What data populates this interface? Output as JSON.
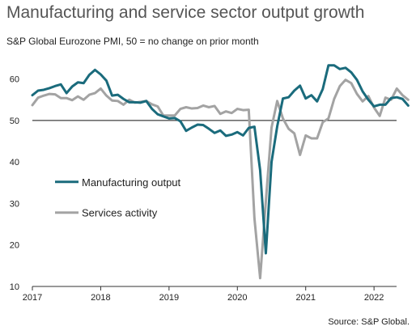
{
  "title": "Manufacturing and service sector output growth",
  "subtitle": "S&P Global Eurozone PMI, 50 = no change on prior month",
  "source": "Source: S&P Global.",
  "chart_data": {
    "type": "line",
    "xlim": [
      2017,
      2022.33
    ],
    "ylim": [
      10,
      65
    ],
    "y_ticks": [
      10,
      20,
      30,
      40,
      50,
      60
    ],
    "x_ticks": [
      "2017",
      "2018",
      "2019",
      "2020",
      "2021",
      "2022"
    ],
    "reference_line": 50,
    "grid": false,
    "legend_position": "lower-left",
    "colors": {
      "manufacturing": "#1a6b7c",
      "services": "#a3a3a3"
    },
    "series": [
      {
        "name": "Manufacturing output",
        "key": "manufacturing",
        "values": [
          [
            "2017-01",
            56.1
          ],
          [
            "2017-02",
            57.2
          ],
          [
            "2017-03",
            57.4
          ],
          [
            "2017-04",
            57.8
          ],
          [
            "2017-05",
            58.3
          ],
          [
            "2017-06",
            58.7
          ],
          [
            "2017-07",
            56.6
          ],
          [
            "2017-08",
            58.2
          ],
          [
            "2017-09",
            59.2
          ],
          [
            "2017-10",
            59.0
          ],
          [
            "2017-11",
            61.0
          ],
          [
            "2017-12",
            62.2
          ],
          [
            "2018-01",
            61.1
          ],
          [
            "2018-02",
            59.6
          ],
          [
            "2018-03",
            56.0
          ],
          [
            "2018-04",
            56.2
          ],
          [
            "2018-05",
            55.2
          ],
          [
            "2018-06",
            54.4
          ],
          [
            "2018-07",
            54.4
          ],
          [
            "2018-08",
            54.3
          ],
          [
            "2018-09",
            54.7
          ],
          [
            "2018-10",
            52.8
          ],
          [
            "2018-11",
            51.5
          ],
          [
            "2018-12",
            51.0
          ],
          [
            "2019-01",
            50.5
          ],
          [
            "2019-02",
            50.6
          ],
          [
            "2019-03",
            49.8
          ],
          [
            "2019-04",
            47.5
          ],
          [
            "2019-05",
            48.3
          ],
          [
            "2019-06",
            49.0
          ],
          [
            "2019-07",
            48.9
          ],
          [
            "2019-08",
            48.0
          ],
          [
            "2019-09",
            47.0
          ],
          [
            "2019-10",
            47.6
          ],
          [
            "2019-11",
            46.3
          ],
          [
            "2019-12",
            46.6
          ],
          [
            "2020-01",
            47.2
          ],
          [
            "2020-02",
            46.4
          ],
          [
            "2020-03",
            48.2
          ],
          [
            "2020-04",
            48.5
          ],
          [
            "2020-05",
            38.0
          ],
          [
            "2020-06",
            18.0
          ],
          [
            "2020-07",
            40.0
          ],
          [
            "2020-08",
            48.6
          ],
          [
            "2020-09",
            55.3
          ],
          [
            "2020-10",
            55.6
          ],
          [
            "2020-11",
            57.2
          ],
          [
            "2020-12",
            58.4
          ],
          [
            "2021-01",
            55.3
          ],
          [
            "2021-02",
            56.1
          ],
          [
            "2021-03",
            54.6
          ],
          [
            "2021-04",
            57.6
          ],
          [
            "2021-05",
            63.3
          ],
          [
            "2021-06",
            63.3
          ],
          [
            "2021-07",
            62.4
          ],
          [
            "2021-08",
            62.7
          ],
          [
            "2021-09",
            61.6
          ],
          [
            "2021-10",
            59.8
          ],
          [
            "2021-11",
            57.0
          ],
          [
            "2021-12",
            55.0
          ],
          [
            "2022-01",
            53.4
          ],
          [
            "2022-02",
            53.8
          ],
          [
            "2022-03",
            53.8
          ],
          [
            "2022-04",
            55.4
          ],
          [
            "2022-05",
            55.6
          ],
          [
            "2022-06",
            55.2
          ],
          [
            "2022-07",
            53.6
          ]
        ]
      },
      {
        "name": "Services activity",
        "key": "services",
        "values": [
          [
            "2017-01",
            53.7
          ],
          [
            "2017-02",
            55.5
          ],
          [
            "2017-03",
            56.0
          ],
          [
            "2017-04",
            56.4
          ],
          [
            "2017-05",
            56.3
          ],
          [
            "2017-06",
            55.4
          ],
          [
            "2017-07",
            55.4
          ],
          [
            "2017-08",
            54.9
          ],
          [
            "2017-09",
            55.8
          ],
          [
            "2017-10",
            55.0
          ],
          [
            "2017-11",
            56.2
          ],
          [
            "2017-12",
            56.6
          ],
          [
            "2018-01",
            57.7
          ],
          [
            "2018-02",
            56.0
          ],
          [
            "2018-03",
            54.8
          ],
          [
            "2018-04",
            54.7
          ],
          [
            "2018-05",
            53.8
          ],
          [
            "2018-06",
            55.0
          ],
          [
            "2018-07",
            54.3
          ],
          [
            "2018-08",
            54.5
          ],
          [
            "2018-09",
            54.7
          ],
          [
            "2018-10",
            53.9
          ],
          [
            "2018-11",
            53.4
          ],
          [
            "2018-12",
            51.2
          ],
          [
            "2019-01",
            51.2
          ],
          [
            "2019-02",
            51.2
          ],
          [
            "2019-03",
            52.8
          ],
          [
            "2019-04",
            53.2
          ],
          [
            "2019-05",
            52.9
          ],
          [
            "2019-06",
            53.0
          ],
          [
            "2019-07",
            53.6
          ],
          [
            "2019-08",
            53.2
          ],
          [
            "2019-09",
            53.5
          ],
          [
            "2019-10",
            51.6
          ],
          [
            "2019-11",
            52.2
          ],
          [
            "2019-12",
            51.8
          ],
          [
            "2020-01",
            52.8
          ],
          [
            "2020-02",
            52.5
          ],
          [
            "2020-03",
            52.6
          ],
          [
            "2020-04",
            26.4
          ],
          [
            "2020-05",
            12.0
          ],
          [
            "2020-06",
            30.5
          ],
          [
            "2020-07",
            48.3
          ],
          [
            "2020-08",
            54.7
          ],
          [
            "2020-09",
            50.5
          ],
          [
            "2020-10",
            48.0
          ],
          [
            "2020-11",
            46.9
          ],
          [
            "2020-12",
            41.7
          ],
          [
            "2021-01",
            46.4
          ],
          [
            "2021-02",
            45.7
          ],
          [
            "2021-03",
            45.7
          ],
          [
            "2021-04",
            49.6
          ],
          [
            "2021-05",
            50.5
          ],
          [
            "2021-06",
            55.2
          ],
          [
            "2021-07",
            58.3
          ],
          [
            "2021-08",
            59.8
          ],
          [
            "2021-09",
            59.0
          ],
          [
            "2021-10",
            56.4
          ],
          [
            "2021-11",
            54.6
          ],
          [
            "2021-12",
            55.9
          ],
          [
            "2022-01",
            53.1
          ],
          [
            "2022-02",
            51.1
          ],
          [
            "2022-03",
            55.5
          ],
          [
            "2022-04",
            55.0
          ],
          [
            "2022-05",
            57.7
          ],
          [
            "2022-06",
            56.1
          ],
          [
            "2022-07",
            55.0
          ]
        ]
      }
    ]
  }
}
